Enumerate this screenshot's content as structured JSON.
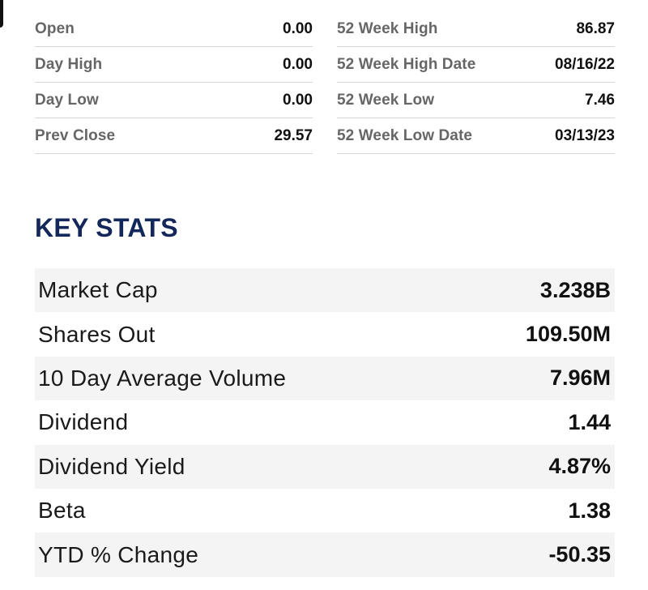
{
  "quote": {
    "left": [
      {
        "label": "Open",
        "value": "0.00"
      },
      {
        "label": "Day High",
        "value": "0.00"
      },
      {
        "label": "Day Low",
        "value": "0.00"
      },
      {
        "label": "Prev Close",
        "value": "29.57"
      }
    ],
    "right": [
      {
        "label": "52 Week High",
        "value": "86.87"
      },
      {
        "label": "52 Week High Date",
        "value": "08/16/22"
      },
      {
        "label": "52 Week Low",
        "value": "7.46"
      },
      {
        "label": "52 Week Low Date",
        "value": "03/13/23"
      }
    ]
  },
  "key_stats": {
    "title": "KEY STATS",
    "rows": [
      {
        "label": "Market Cap",
        "value": "3.238B"
      },
      {
        "label": "Shares Out",
        "value": "109.50M"
      },
      {
        "label": "10 Day Average Volume",
        "value": "7.96M"
      },
      {
        "label": "Dividend",
        "value": "1.44"
      },
      {
        "label": "Dividend Yield",
        "value": "4.87%"
      },
      {
        "label": "Beta",
        "value": "1.38"
      },
      {
        "label": "YTD % Change",
        "value": "-50.35"
      }
    ]
  },
  "colors": {
    "title": "#13275a",
    "label_gray": "#666666",
    "row_shade": "#f4f4f4",
    "divider": "#d6d6d6"
  }
}
